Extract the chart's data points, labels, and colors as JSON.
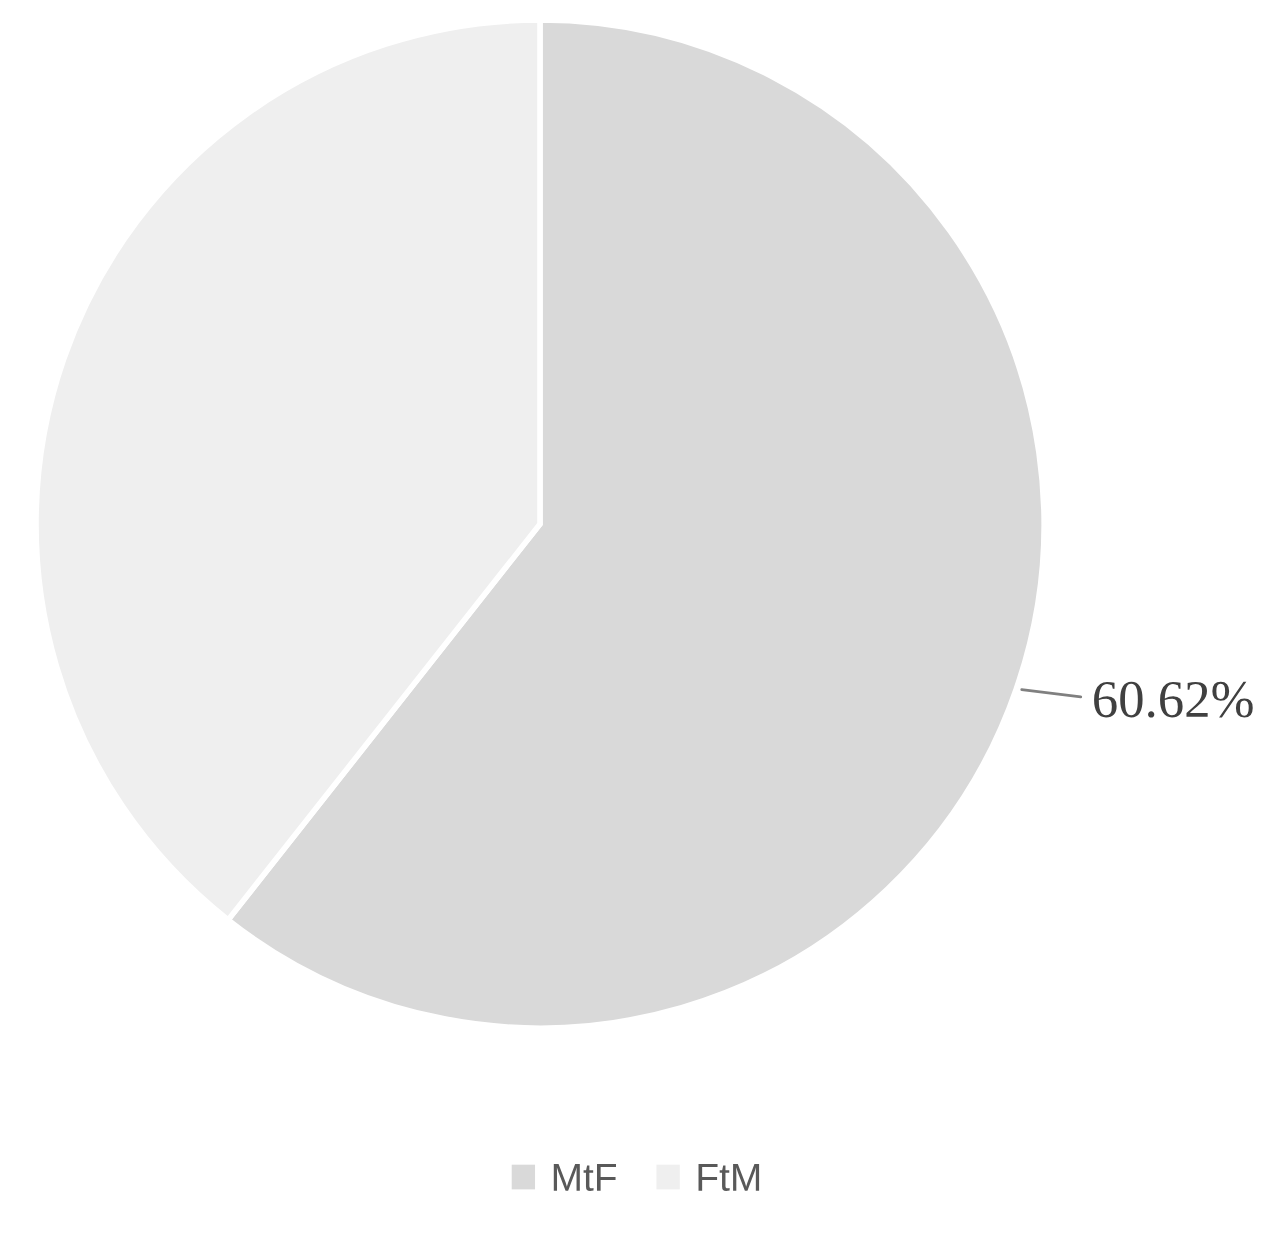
{
  "chart_data": {
    "type": "pie",
    "categories": [
      "MtF",
      "FtM"
    ],
    "values": [
      60.62,
      39.38
    ],
    "colors": [
      "#d9d9d9",
      "#efefef"
    ],
    "value_labels": [
      "60.62%",
      null
    ],
    "legend": "bottom"
  }
}
